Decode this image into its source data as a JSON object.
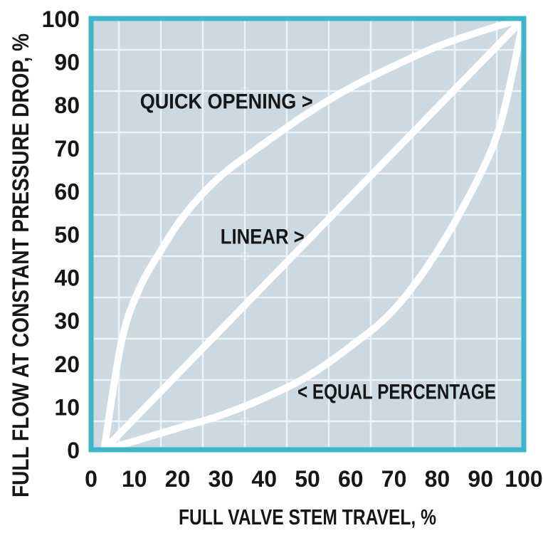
{
  "figure": {
    "background": "#ffffff",
    "plot_background": "#cdd9e0",
    "grid_color": "#edf2f6",
    "border_color": "#3cb6ca",
    "curve_color": "#ffffff",
    "text_color": "#161616"
  },
  "chart_data": {
    "type": "line",
    "xlabel": "FULL VALVE STEM TRAVEL, %",
    "ylabel": "FULL FLOW AT CONSTANT PRESSURE DROP, %",
    "xlim": [
      0,
      100
    ],
    "ylim": [
      0,
      100
    ],
    "x_ticks": [
      0,
      10,
      20,
      30,
      40,
      50,
      60,
      70,
      80,
      90,
      100
    ],
    "y_ticks": [
      0,
      10,
      20,
      30,
      40,
      50,
      60,
      70,
      80,
      90,
      100
    ],
    "grid": "on",
    "legend_position": "inline-curve-labels",
    "series": [
      {
        "name": "quick-opening",
        "label": "QUICK OPENING >",
        "label_anchor": {
          "x": 11.3,
          "y": 80.7
        },
        "points": [
          [
            3,
            0
          ],
          [
            7,
            25
          ],
          [
            11,
            37
          ],
          [
            16,
            46
          ],
          [
            22,
            55
          ],
          [
            30,
            63.5
          ],
          [
            40,
            71
          ],
          [
            50,
            78
          ],
          [
            60,
            84
          ],
          [
            70,
            89
          ],
          [
            80,
            93.5
          ],
          [
            90,
            97
          ],
          [
            100,
            100
          ]
        ]
      },
      {
        "name": "linear",
        "label": "LINEAR >",
        "label_anchor": {
          "x": 29.9,
          "y": 49.3
        },
        "points": [
          [
            3,
            0
          ],
          [
            27.25,
            25
          ],
          [
            51.5,
            50
          ],
          [
            75.75,
            75
          ],
          [
            100,
            100
          ]
        ]
      },
      {
        "name": "equal-percentage",
        "label": "< EQUAL PERCENTAGE",
        "label_anchor": {
          "x": 47.7,
          "y": 13.4
        },
        "points": [
          [
            3,
            0
          ],
          [
            10,
            2
          ],
          [
            20,
            5
          ],
          [
            30,
            8
          ],
          [
            40,
            12
          ],
          [
            50,
            17
          ],
          [
            60,
            24
          ],
          [
            70,
            32.5
          ],
          [
            80,
            46
          ],
          [
            90,
            64
          ],
          [
            95,
            77
          ],
          [
            100,
            100
          ]
        ]
      }
    ]
  }
}
